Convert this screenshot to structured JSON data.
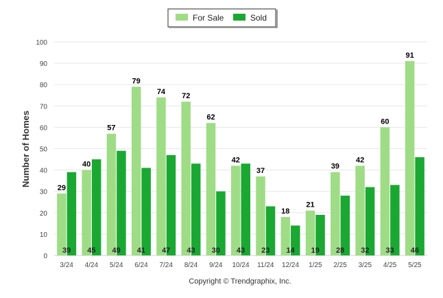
{
  "chart_data": {
    "type": "bar",
    "categories": [
      "3/24",
      "4/24",
      "5/24",
      "6/24",
      "7/24",
      "8/24",
      "9/24",
      "10/24",
      "11/24",
      "12/24",
      "1/25",
      "2/25",
      "3/25",
      "4/25",
      "5/25"
    ],
    "series": [
      {
        "name": "For Sale",
        "values": [
          29,
          40,
          57,
          79,
          74,
          72,
          62,
          42,
          37,
          18,
          21,
          39,
          42,
          60,
          91
        ]
      },
      {
        "name": "Sold",
        "values": [
          39,
          45,
          49,
          41,
          47,
          43,
          30,
          43,
          23,
          14,
          19,
          28,
          32,
          33,
          46
        ]
      }
    ],
    "title": "",
    "xlabel": "",
    "ylabel": "Number of Homes",
    "ylim": [
      0,
      100
    ],
    "yticks": [
      0,
      10,
      20,
      30,
      40,
      50,
      60,
      70,
      80,
      90,
      100
    ],
    "grid": true,
    "legend_position": "top-center",
    "colors": {
      "For Sale": "#9fdc86",
      "Sold": "#1aa832"
    }
  },
  "copyright": "Copyright © Trendgraphix, Inc."
}
